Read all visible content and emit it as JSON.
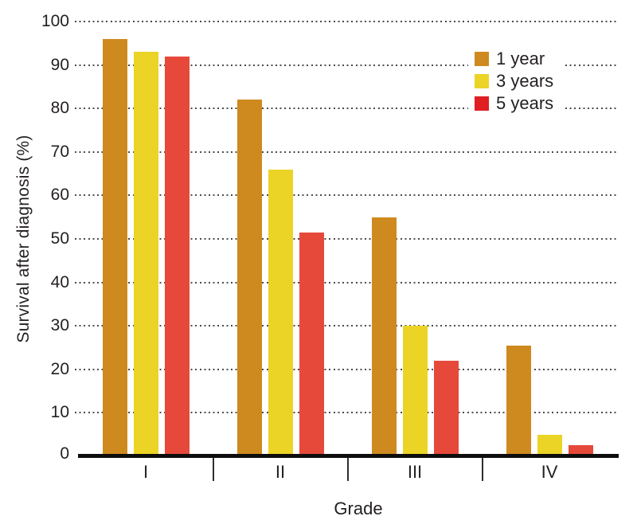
{
  "figure": {
    "background_color": "#ffffff",
    "text_color": "#231f20",
    "grid_color": "#4b4b4b",
    "axis_color": "#0d0d0d"
  },
  "chart_data": {
    "type": "bar",
    "title": "",
    "xlabel": "Grade",
    "ylabel": "Survival after diagnosis (%)",
    "categories": [
      "I",
      "II",
      "III",
      "IV"
    ],
    "series": [
      {
        "name": "1 year",
        "color": "#ce8a1e",
        "legend_color": "#ce8a1e",
        "values": [
          96,
          82,
          55,
          25.5
        ]
      },
      {
        "name": "3 years",
        "color": "#ecd426",
        "legend_color": "#ecd426",
        "values": [
          93,
          66,
          30,
          5
        ]
      },
      {
        "name": "5 years",
        "color": "#e6493a",
        "legend_color": "#e01f23",
        "values": [
          92,
          51.5,
          22,
          2.5
        ]
      }
    ],
    "ylim": [
      0,
      100
    ],
    "ytick_interval": 10,
    "yticks": [
      0,
      10,
      20,
      30,
      40,
      50,
      60,
      70,
      80,
      90,
      100
    ],
    "grid": "horizontal dotted lines at every 10, drawn behind bars",
    "legend_position": "top-right inside plot, white background box",
    "x_axis_style": "thick black baseline with small divider ticks between category groups"
  }
}
